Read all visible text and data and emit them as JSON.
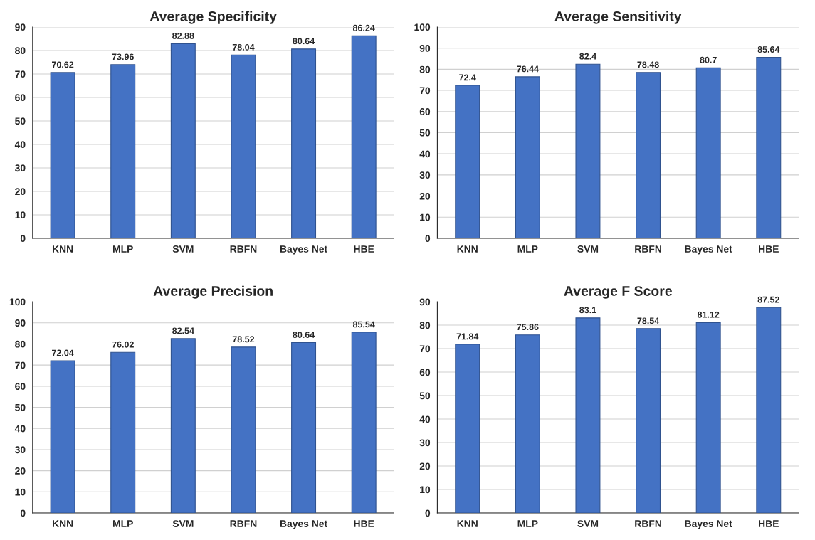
{
  "chart_data": [
    {
      "type": "bar",
      "title": "Average Specificity",
      "categories": [
        "KNN",
        "MLP",
        "SVM",
        "RBFN",
        "Bayes Net",
        "HBE"
      ],
      "values": [
        70.62,
        73.96,
        82.88,
        78.04,
        80.64,
        86.24
      ],
      "color": "#4472c4",
      "ylim": [
        0,
        90
      ],
      "yticks": [
        0,
        10,
        20,
        30,
        40,
        50,
        60,
        70,
        80,
        90
      ],
      "grid": "y",
      "data_labels": true
    },
    {
      "type": "bar",
      "title": "Average Sensitivity",
      "categories": [
        "KNN",
        "MLP",
        "SVM",
        "RBFN",
        "Bayes Net",
        "HBE"
      ],
      "values": [
        72.4,
        76.44,
        82.4,
        78.48,
        80.7,
        85.64
      ],
      "color": "#4472c4",
      "ylim": [
        0,
        100
      ],
      "yticks": [
        0,
        10,
        20,
        30,
        40,
        50,
        60,
        70,
        80,
        90,
        100
      ],
      "grid": "y",
      "data_labels": true
    },
    {
      "type": "bar",
      "title": "Average Precision",
      "categories": [
        "KNN",
        "MLP",
        "SVM",
        "RBFN",
        "Bayes Net",
        "HBE"
      ],
      "values": [
        72.04,
        76.02,
        82.54,
        78.52,
        80.64,
        85.54
      ],
      "color": "#4472c4",
      "ylim": [
        0,
        100
      ],
      "yticks": [
        0,
        10,
        20,
        30,
        40,
        50,
        60,
        70,
        80,
        90,
        100
      ],
      "grid": "y",
      "data_labels": true
    },
    {
      "type": "bar",
      "title": "Average F Score",
      "categories": [
        "KNN",
        "MLP",
        "SVM",
        "RBFN",
        "Bayes Net",
        "HBE"
      ],
      "values": [
        71.84,
        75.86,
        83.1,
        78.54,
        81.12,
        87.52
      ],
      "color": "#4472c4",
      "ylim": [
        0,
        90
      ],
      "yticks": [
        0,
        10,
        20,
        30,
        40,
        50,
        60,
        70,
        80,
        90
      ],
      "grid": "y",
      "data_labels": true
    }
  ]
}
